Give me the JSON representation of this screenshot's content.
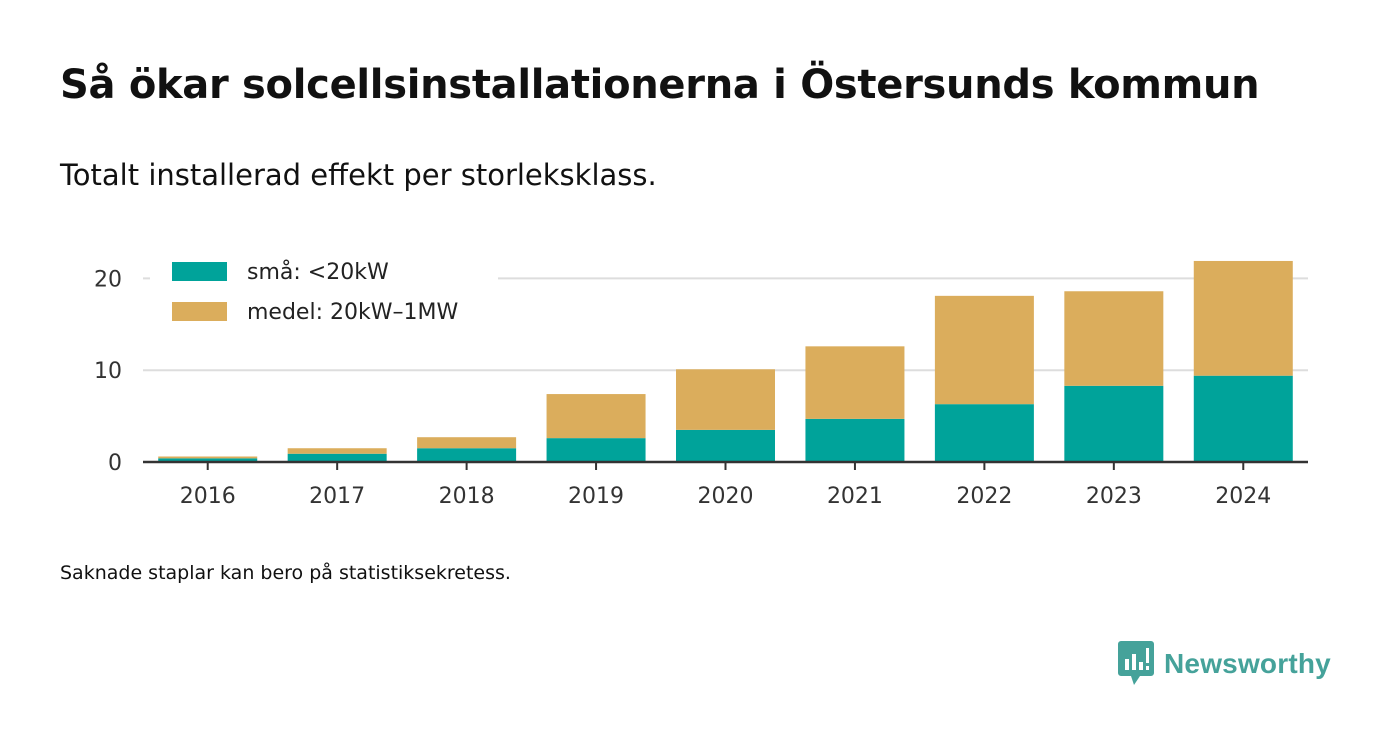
{
  "header": {
    "title": "Så ökar solcellsinstallationerna i Östersunds kommun",
    "subtitle": "Totalt installerad effekt per storleksklass."
  },
  "footer": {
    "note": "Saknade staplar kan bero på statistiksekretess.",
    "brand": "Newsworthy"
  },
  "colors": {
    "small": "#00a39a",
    "medium": "#dbad5c",
    "grid": "#dddddd",
    "axis": "#333333",
    "brand": "#45a29a"
  },
  "chart_data": {
    "type": "bar",
    "stacked": true,
    "title": "Så ökar solcellsinstallationerna i Östersunds kommun",
    "subtitle": "Totalt installerad effekt per storleksklass.",
    "categories": [
      "2016",
      "2017",
      "2018",
      "2019",
      "2020",
      "2021",
      "2022",
      "2023",
      "2024"
    ],
    "series": [
      {
        "name": "små: <20kW",
        "color": "#00a39a",
        "values": [
          0.4,
          0.9,
          1.5,
          2.6,
          3.5,
          4.7,
          6.3,
          8.3,
          9.4
        ]
      },
      {
        "name": "medel: 20kW–1MW",
        "color": "#dbad5c",
        "values": [
          0.2,
          0.6,
          1.2,
          4.8,
          6.6,
          7.9,
          11.8,
          10.3,
          12.5
        ]
      }
    ],
    "yticks": [
      0,
      10,
      20
    ],
    "ylim": [
      0,
      23
    ],
    "xlabel": "",
    "ylabel": "",
    "grid": true,
    "legend": "top-left"
  }
}
